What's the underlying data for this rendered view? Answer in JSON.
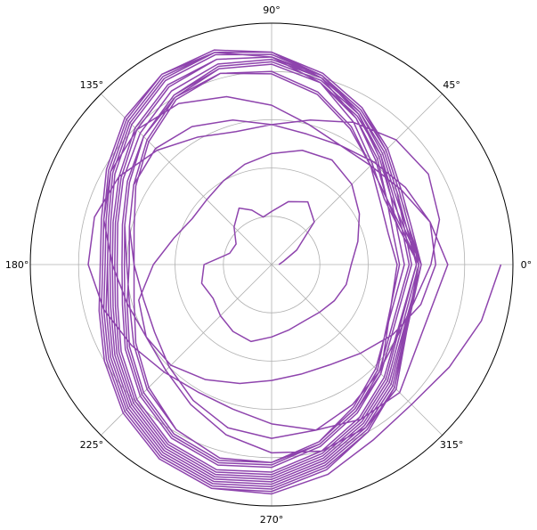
{
  "chart_data": {
    "type": "line",
    "projection": "polar",
    "title": "",
    "xlabel": "",
    "ylabel": "",
    "angle_unit": "degrees",
    "angle_ticks": [
      {
        "deg": 0,
        "label": "0°"
      },
      {
        "deg": 45,
        "label": "45°"
      },
      {
        "deg": 90,
        "label": "90°"
      },
      {
        "deg": 135,
        "label": "135°"
      },
      {
        "deg": 180,
        "label": "180°"
      },
      {
        "deg": 225,
        "label": "225°"
      },
      {
        "deg": 270,
        "label": "270°"
      },
      {
        "deg": 315,
        "label": "315°"
      }
    ],
    "radial_tick_labels_visible": false,
    "rlim": [
      0,
      1
    ],
    "grid": true,
    "line_color": "#8e44ad",
    "series": [
      {
        "theta_deg": [
          0,
          15,
          30,
          45,
          60,
          75,
          90,
          100,
          110,
          120,
          135,
          150,
          165,
          180,
          195,
          210,
          225,
          240,
          255,
          270,
          285,
          300,
          315,
          330,
          345,
          360,
          375,
          390,
          405,
          420,
          435,
          450,
          465,
          480,
          495,
          510,
          525,
          540,
          555,
          570,
          585,
          600,
          615,
          630,
          645,
          660,
          675,
          690,
          705,
          720,
          735,
          750,
          765,
          780,
          795,
          810,
          825,
          840,
          855,
          870,
          885,
          900,
          915,
          930,
          945,
          960,
          975,
          990,
          1005,
          1020,
          1035,
          1050,
          1065,
          1080,
          1095,
          1110,
          1125,
          1140,
          1155,
          1170,
          1185,
          1200,
          1215,
          1230,
          1245,
          1260,
          1275,
          1290,
          1305,
          1320,
          1335,
          1350,
          1365,
          1380,
          1395,
          1440,
          1455,
          1470,
          1485,
          1500,
          1515,
          1530,
          1545,
          1560,
          1575,
          1590,
          1605,
          1620,
          1635,
          1650,
          1665,
          1680,
          1695,
          1710,
          1725,
          1740,
          1755,
          1800,
          1815,
          1830,
          1845,
          1860,
          1875,
          1890,
          1905,
          1920,
          1935,
          1950,
          1965,
          1980,
          1995,
          2010,
          2025,
          2040,
          2055,
          2070,
          2085,
          2100,
          2115,
          2160,
          2175,
          2190,
          2205,
          2220,
          2235,
          2250,
          2265,
          2280,
          2295,
          2310,
          2325,
          2340,
          2355,
          2370,
          2385,
          2400,
          2415,
          2430,
          2445,
          2460,
          2475,
          2520,
          2535,
          2550,
          2565,
          2580,
          2595,
          2610,
          2625,
          2640,
          2655,
          2670,
          2685,
          2700,
          2715,
          2730,
          2745,
          2760,
          2775,
          2790,
          2805,
          2820,
          2835,
          2880,
          2895,
          2910,
          2925,
          2940,
          2955,
          2970,
          2985,
          3000,
          3015,
          3030,
          3045,
          3060,
          3075,
          3090,
          3105,
          3120,
          3135,
          3150,
          3165,
          3180,
          3195,
          3240,
          3255,
          3270,
          3285,
          3300,
          3315,
          3330,
          3345,
          3360,
          3375,
          3390,
          3405,
          3420,
          3435,
          3450,
          3465,
          3480,
          3495,
          3510,
          3525,
          3540,
          3555,
          3600,
          3615,
          3630,
          3645,
          3660,
          3675,
          3690,
          3705,
          3720,
          3735,
          3750,
          3765,
          3780,
          3795,
          3810,
          3825,
          3840,
          3855,
          3870,
          3885,
          3900,
          3915,
          3960,
          3975,
          3990,
          4005,
          4020,
          4035,
          4050,
          4065,
          4080,
          4095,
          4110,
          4125,
          4140,
          4155,
          4170,
          4185,
          4200,
          4215,
          4230,
          4245,
          4260,
          4275,
          4320,
          4335,
          4350,
          4365,
          4380,
          4395,
          4410,
          4425,
          4440,
          4455,
          4470,
          4485,
          4500,
          4515,
          4530,
          4545,
          4560,
          4575,
          4590,
          4605,
          4620,
          4635,
          4680,
          4695,
          4710,
          4725,
          4740,
          4755,
          4770,
          4785,
          4800,
          4815,
          4830,
          4845,
          4860,
          4875,
          4890,
          4905,
          4920,
          4935,
          4950,
          4965,
          4980,
          4995,
          5040,
          5055,
          5070,
          5085,
          5100,
          5115,
          5130,
          5145,
          5160,
          5175,
          5190,
          5205,
          5220,
          5235,
          5250,
          5265,
          5280,
          5295,
          5310,
          5325,
          5340,
          5355,
          5400,
          5415,
          5430,
          5445,
          5460,
          5475,
          5490,
          5505,
          5520,
          5535,
          5550,
          5565,
          5580,
          5595,
          5610,
          5625,
          5640,
          5655,
          5670,
          5685,
          5700,
          5715,
          5760,
          5775,
          5790,
          5805,
          5820,
          5835,
          5850,
          5865,
          5880,
          5895,
          5910,
          5925,
          5940,
          5955,
          5970,
          5985,
          6000,
          6015,
          6030,
          6045,
          6060,
          6075,
          6120,
          6135,
          6150,
          6165,
          6180,
          6195,
          6210,
          6225,
          6240,
          6255,
          6270,
          6285,
          6300,
          6315,
          6330,
          6345,
          6360,
          6375,
          6390,
          6405,
          6420,
          6435,
          6480,
          6495,
          6510,
          6525,
          6540,
          6555,
          6570,
          6585,
          6600,
          6615,
          6630,
          6645,
          6660,
          6675,
          6690,
          6705,
          6720,
          6735,
          6750,
          6765,
          6780,
          6795,
          6840,
          6855,
          6870,
          6885,
          6900,
          6915,
          6930,
          6945,
          6960,
          6975,
          6990,
          7005,
          7020,
          7035,
          7050,
          7065,
          7080,
          7095,
          7110,
          7125,
          7140,
          7155,
          7170,
          7185,
          7200
        ],
        "r": [
          0.03,
          0.05,
          0.12,
          0.25,
          0.3,
          0.27,
          0.22,
          0.2,
          0.24,
          0.27,
          0.22,
          0.17,
          0.18,
          0.28,
          0.3,
          0.28,
          0.3,
          0.32,
          0.33,
          0.3,
          0.28,
          0.27,
          0.28,
          0.3,
          0.32,
          0.33,
          0.37,
          0.42,
          0.47,
          0.5,
          0.49,
          0.46,
          0.43,
          0.4,
          0.38,
          0.38,
          0.42,
          0.49,
          0.57,
          0.6,
          0.59,
          0.55,
          0.51,
          0.48,
          0.47,
          0.48,
          0.52,
          0.58,
          0.64,
          0.68,
          0.68,
          0.64,
          0.6,
          0.57,
          0.56,
          0.58,
          0.62,
          0.66,
          0.68,
          0.66,
          0.61,
          0.57,
          0.55,
          0.56,
          0.6,
          0.65,
          0.7,
          0.72,
          0.71,
          0.67,
          0.63,
          0.6,
          0.61,
          0.66,
          0.72,
          0.75,
          0.73,
          0.68,
          0.62,
          0.58,
          0.57,
          0.61,
          0.67,
          0.73,
          0.76,
          0.76,
          0.72,
          0.67,
          0.63,
          0.61,
          0.62,
          0.66,
          0.71,
          0.74,
          0.75,
          0.73,
          0.68,
          0.62,
          0.58,
          0.57,
          0.6,
          0.66,
          0.72,
          0.77,
          0.79,
          0.77,
          0.72,
          0.66,
          0.62,
          0.6,
          0.62,
          0.67,
          0.73,
          0.78,
          0.8,
          0.78,
          0.73,
          0.61,
          0.56,
          0.55,
          0.58,
          0.65,
          0.73,
          0.79,
          0.82,
          0.8,
          0.75,
          0.68,
          0.63,
          0.6,
          0.61,
          0.66,
          0.73,
          0.79,
          0.83,
          0.82,
          0.77,
          0.7,
          0.64,
          0.52,
          0.5,
          0.52,
          0.58,
          0.66,
          0.74,
          0.8,
          0.82,
          0.79,
          0.72,
          0.65,
          0.59,
          0.57,
          0.59,
          0.65,
          0.72,
          0.79,
          0.83,
          0.82,
          0.76,
          0.69,
          0.62,
          0.53,
          0.52,
          0.55,
          0.62,
          0.7,
          0.78,
          0.83,
          0.84,
          0.8,
          0.73,
          0.66,
          0.61,
          0.59,
          0.62,
          0.68,
          0.75,
          0.81,
          0.84,
          0.82,
          0.76,
          0.68,
          0.61,
          0.55,
          0.54,
          0.57,
          0.64,
          0.72,
          0.79,
          0.84,
          0.85,
          0.81,
          0.75,
          0.68,
          0.63,
          0.61,
          0.63,
          0.69,
          0.76,
          0.82,
          0.85,
          0.83,
          0.77,
          0.7,
          0.63,
          0.57,
          0.56,
          0.58,
          0.64,
          0.71,
          0.78,
          0.83,
          0.84,
          0.81,
          0.75,
          0.69,
          0.64,
          0.62,
          0.64,
          0.7,
          0.77,
          0.83,
          0.86,
          0.84,
          0.78,
          0.71,
          0.64,
          0.58,
          0.57,
          0.6,
          0.66,
          0.73,
          0.8,
          0.85,
          0.86,
          0.83,
          0.77,
          0.71,
          0.66,
          0.64,
          0.66,
          0.72,
          0.79,
          0.85,
          0.88,
          0.86,
          0.8,
          0.73,
          0.66,
          0.6,
          0.59,
          0.61,
          0.67,
          0.74,
          0.81,
          0.86,
          0.88,
          0.85,
          0.79,
          0.72,
          0.67,
          0.65,
          0.67,
          0.73,
          0.8,
          0.86,
          0.89,
          0.87,
          0.81,
          0.74,
          0.67,
          0.6,
          0.58,
          0.6,
          0.66,
          0.73,
          0.8,
          0.86,
          0.88,
          0.86,
          0.8,
          0.73,
          0.68,
          0.66,
          0.68,
          0.74,
          0.81,
          0.87,
          0.9,
          0.88,
          0.82,
          0.75,
          0.68,
          0.61,
          0.59,
          0.61,
          0.67,
          0.74,
          0.81,
          0.87,
          0.9,
          0.88,
          0.82,
          0.75,
          0.69,
          0.67,
          0.69,
          0.75,
          0.82,
          0.88,
          0.91,
          0.89,
          0.83,
          0.76,
          0.69,
          0.62,
          0.6,
          0.62,
          0.68,
          0.75,
          0.82,
          0.88,
          0.91,
          0.89,
          0.83,
          0.76,
          0.7,
          0.68,
          0.7,
          0.76,
          0.83,
          0.89,
          0.92,
          0.9,
          0.84,
          0.77,
          0.7,
          0.62,
          0.59,
          0.61,
          0.67,
          0.75,
          0.82,
          0.88,
          0.91,
          0.89,
          0.83,
          0.76,
          0.7,
          0.68,
          0.71,
          0.77,
          0.84,
          0.9,
          0.93,
          0.91,
          0.85,
          0.78,
          0.71,
          0.62,
          0.58,
          0.59,
          0.65,
          0.73,
          0.81,
          0.88,
          0.91,
          0.9,
          0.84,
          0.77,
          0.71,
          0.69,
          0.72,
          0.78,
          0.85,
          0.91,
          0.94,
          0.92,
          0.86,
          0.79,
          0.72,
          0.62,
          0.57,
          0.57,
          0.63,
          0.72,
          0.81,
          0.88,
          0.92,
          0.91,
          0.85,
          0.78,
          0.72,
          0.7,
          0.73,
          0.79,
          0.86,
          0.92,
          0.95,
          0.93,
          0.87,
          0.8,
          0.72,
          0.61,
          0.55,
          0.55,
          0.61,
          0.7,
          0.8,
          0.88,
          0.92,
          0.91,
          0.86,
          0.79,
          0.73,
          0.71,
          0.74,
          0.8,
          0.87,
          0.93,
          0.96,
          0.94,
          0.88,
          0.8,
          0.72,
          0.61,
          0.55,
          0.54,
          0.59,
          0.68,
          0.78,
          0.86,
          0.91,
          0.91,
          0.86,
          0.79,
          0.73,
          0.71,
          0.74,
          0.8,
          0.87,
          0.93,
          0.96,
          0.95,
          0.9,
          0.84,
          0.82,
          0.85,
          0.9,
          0.95
        ]
      }
    ]
  }
}
